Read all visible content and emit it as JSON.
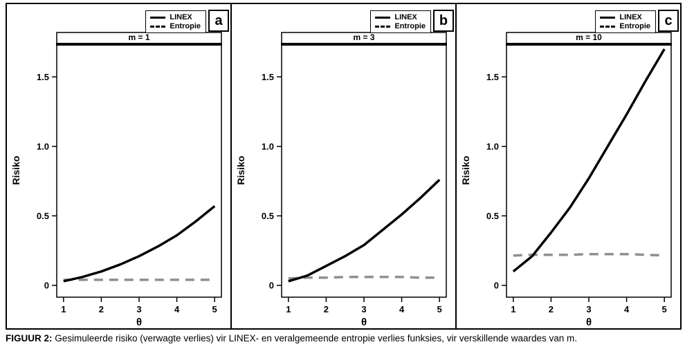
{
  "figure": {
    "caption_label": "FIGUUR 2:",
    "caption_text": " Gesimuleerde risiko (verwagte verlies) vir LINEX- en veralgemeende entropie verlies funksies, vir verskillende waardes van m."
  },
  "legend": {
    "items": [
      {
        "label": "LINEX",
        "style": "solid"
      },
      {
        "label": "Entropie",
        "style": "dashed"
      }
    ]
  },
  "colors": {
    "linex": "#000000",
    "entropie": "#8f8f8f",
    "border": "#000000",
    "background": "#ffffff"
  },
  "chart_data": [
    {
      "type": "line",
      "panel_label": "a",
      "strip_title": "m = 1",
      "xlabel": "θ",
      "ylabel": "Risiko",
      "xticks": [
        1,
        2,
        3,
        4,
        5
      ],
      "yticks": [
        0,
        0.5,
        1.0,
        1.5
      ],
      "yticklabels": [
        "0",
        "0.5",
        "1.0",
        "1.5"
      ],
      "xlim": [
        0.82,
        5.18
      ],
      "ylim": [
        -0.085,
        1.74
      ],
      "grid": false,
      "legend_position": "top-right",
      "x": [
        1,
        1.5,
        2,
        2.5,
        3,
        3.5,
        4,
        4.5,
        5
      ],
      "series": [
        {
          "name": "LINEX",
          "style": "solid",
          "values": [
            0.03,
            0.06,
            0.1,
            0.15,
            0.21,
            0.28,
            0.36,
            0.46,
            0.57
          ]
        },
        {
          "name": "Entropie",
          "style": "dashed",
          "values": [
            0.04,
            0.04,
            0.04,
            0.04,
            0.04,
            0.04,
            0.04,
            0.04,
            0.04
          ]
        }
      ]
    },
    {
      "type": "line",
      "panel_label": "b",
      "strip_title": "m = 3",
      "xlabel": "θ",
      "ylabel": "Risiko",
      "xticks": [
        1,
        2,
        3,
        4,
        5
      ],
      "yticks": [
        0,
        0.5,
        1.0,
        1.5
      ],
      "yticklabels": [
        "0",
        "0.5",
        "1.0",
        "1.5"
      ],
      "xlim": [
        0.82,
        5.18
      ],
      "ylim": [
        -0.085,
        1.74
      ],
      "grid": false,
      "legend_position": "top-right",
      "x": [
        1,
        1.5,
        2,
        2.5,
        3,
        3.5,
        4,
        4.5,
        5
      ],
      "series": [
        {
          "name": "LINEX",
          "style": "solid",
          "values": [
            0.03,
            0.07,
            0.14,
            0.21,
            0.29,
            0.4,
            0.51,
            0.63,
            0.76
          ]
        },
        {
          "name": "Entropie",
          "style": "dashed",
          "values": [
            0.05,
            0.055,
            0.055,
            0.06,
            0.06,
            0.06,
            0.06,
            0.055,
            0.055
          ]
        }
      ]
    },
    {
      "type": "line",
      "panel_label": "c",
      "strip_title": "m = 10",
      "xlabel": "θ",
      "ylabel": "Risiko",
      "xticks": [
        1,
        2,
        3,
        4,
        5
      ],
      "yticks": [
        0,
        0.5,
        1.0,
        1.5
      ],
      "yticklabels": [
        "0",
        "0.5",
        "1.0",
        "1.5"
      ],
      "xlim": [
        0.82,
        5.18
      ],
      "ylim": [
        -0.085,
        1.74
      ],
      "grid": false,
      "legend_position": "top-right",
      "x": [
        1,
        1.5,
        2,
        2.5,
        3,
        3.5,
        4,
        4.5,
        5
      ],
      "series": [
        {
          "name": "LINEX",
          "style": "solid",
          "values": [
            0.1,
            0.21,
            0.38,
            0.56,
            0.77,
            1.0,
            1.23,
            1.47,
            1.7
          ]
        },
        {
          "name": "Entropie",
          "style": "dashed",
          "values": [
            0.215,
            0.22,
            0.22,
            0.22,
            0.225,
            0.225,
            0.225,
            0.22,
            0.215
          ]
        }
      ]
    }
  ]
}
